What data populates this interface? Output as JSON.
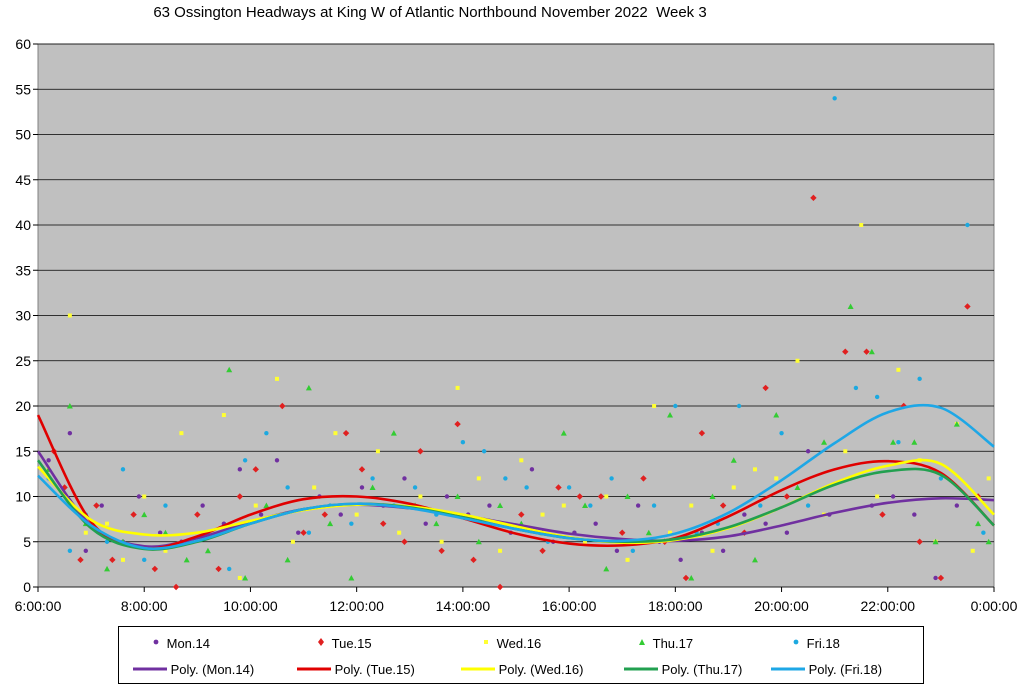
{
  "chart_data": {
    "type": "scatter",
    "title": "63 Ossington Headways at King W of Atlantic Northbound November 2022  Week 3",
    "xlabel": "",
    "ylabel": "",
    "x_range_hours": [
      6,
      24
    ],
    "ylim": [
      0,
      60
    ],
    "y_ticks": [
      0,
      5,
      10,
      15,
      20,
      25,
      30,
      35,
      40,
      45,
      50,
      55,
      60
    ],
    "x_tick_labels": [
      "6:00:00",
      "8:00:00",
      "10:00:00",
      "12:00:00",
      "14:00:00",
      "16:00:00",
      "18:00:00",
      "20:00:00",
      "22:00:00",
      "0:00:00"
    ],
    "grid": "horizontal",
    "plot_background": "#c0c0c0",
    "legend_position": "bottom",
    "series": [
      {
        "name": "Mon.14",
        "color": "#7030a0",
        "marker": "circle",
        "points": [
          [
            6.2,
            14
          ],
          [
            6.6,
            17
          ],
          [
            6.9,
            4
          ],
          [
            7.2,
            9
          ],
          [
            7.6,
            5
          ],
          [
            7.9,
            10
          ],
          [
            8.3,
            6
          ],
          [
            8.7,
            5
          ],
          [
            9.1,
            9
          ],
          [
            9.5,
            7
          ],
          [
            9.8,
            13
          ],
          [
            10.2,
            8
          ],
          [
            10.5,
            14
          ],
          [
            10.9,
            6
          ],
          [
            11.3,
            10
          ],
          [
            11.7,
            8
          ],
          [
            12.1,
            11
          ],
          [
            12.5,
            9
          ],
          [
            12.9,
            12
          ],
          [
            13.3,
            7
          ],
          [
            13.7,
            10
          ],
          [
            14.1,
            8
          ],
          [
            14.5,
            9
          ],
          [
            14.9,
            6
          ],
          [
            15.3,
            13
          ],
          [
            15.7,
            5
          ],
          [
            16.1,
            6
          ],
          [
            16.5,
            7
          ],
          [
            16.9,
            4
          ],
          [
            17.3,
            9
          ],
          [
            17.7,
            5
          ],
          [
            18.1,
            3
          ],
          [
            18.5,
            6
          ],
          [
            18.9,
            4
          ],
          [
            19.3,
            8
          ],
          [
            19.7,
            7
          ],
          [
            20.1,
            6
          ],
          [
            20.5,
            15
          ],
          [
            20.9,
            8
          ],
          [
            21.3,
            12
          ],
          [
            21.7,
            9
          ],
          [
            22.1,
            10
          ],
          [
            22.5,
            8
          ],
          [
            22.9,
            1
          ],
          [
            23.3,
            9
          ],
          [
            23.7,
            10
          ]
        ]
      },
      {
        "name": "Tue.15",
        "color": "#e02020",
        "marker": "diamond",
        "points": [
          [
            6.3,
            15
          ],
          [
            6.5,
            11
          ],
          [
            6.8,
            3
          ],
          [
            7.1,
            9
          ],
          [
            7.4,
            3
          ],
          [
            7.8,
            8
          ],
          [
            8.2,
            2
          ],
          [
            8.6,
            0
          ],
          [
            9.0,
            8
          ],
          [
            9.4,
            2
          ],
          [
            9.8,
            10
          ],
          [
            10.1,
            13
          ],
          [
            10.6,
            20
          ],
          [
            11.0,
            6
          ],
          [
            11.4,
            8
          ],
          [
            11.8,
            17
          ],
          [
            12.1,
            13
          ],
          [
            12.5,
            7
          ],
          [
            12.9,
            5
          ],
          [
            13.2,
            15
          ],
          [
            13.6,
            4
          ],
          [
            13.9,
            18
          ],
          [
            14.2,
            3
          ],
          [
            14.7,
            0
          ],
          [
            15.1,
            8
          ],
          [
            15.5,
            4
          ],
          [
            15.8,
            11
          ],
          [
            16.2,
            10
          ],
          [
            16.6,
            10
          ],
          [
            17.0,
            6
          ],
          [
            17.4,
            12
          ],
          [
            17.8,
            5
          ],
          [
            18.2,
            1
          ],
          [
            18.5,
            17
          ],
          [
            18.9,
            9
          ],
          [
            19.3,
            6
          ],
          [
            19.7,
            22
          ],
          [
            20.1,
            10
          ],
          [
            20.6,
            43
          ],
          [
            21.2,
            26
          ],
          [
            21.6,
            26
          ],
          [
            21.9,
            8
          ],
          [
            22.3,
            20
          ],
          [
            22.6,
            5
          ],
          [
            23.0,
            1
          ],
          [
            23.5,
            31
          ],
          [
            23.7,
            10
          ]
        ]
      },
      {
        "name": "Wed.16",
        "color": "#ffff33",
        "marker": "square",
        "points": [
          [
            6.2,
            13
          ],
          [
            6.6,
            30
          ],
          [
            6.9,
            6
          ],
          [
            7.3,
            7
          ],
          [
            7.6,
            3
          ],
          [
            8.0,
            10
          ],
          [
            8.4,
            4
          ],
          [
            8.7,
            17
          ],
          [
            9.1,
            6
          ],
          [
            9.5,
            19
          ],
          [
            9.8,
            1
          ],
          [
            10.1,
            9
          ],
          [
            10.5,
            23
          ],
          [
            10.8,
            5
          ],
          [
            11.2,
            11
          ],
          [
            11.6,
            17
          ],
          [
            12.0,
            8
          ],
          [
            12.4,
            15
          ],
          [
            12.8,
            6
          ],
          [
            13.2,
            10
          ],
          [
            13.6,
            5
          ],
          [
            13.9,
            22
          ],
          [
            14.3,
            12
          ],
          [
            14.7,
            4
          ],
          [
            15.1,
            14
          ],
          [
            15.5,
            8
          ],
          [
            15.9,
            9
          ],
          [
            16.3,
            5
          ],
          [
            16.7,
            10
          ],
          [
            17.1,
            3
          ],
          [
            17.6,
            20
          ],
          [
            17.9,
            6
          ],
          [
            18.3,
            9
          ],
          [
            18.7,
            4
          ],
          [
            19.1,
            11
          ],
          [
            19.5,
            13
          ],
          [
            19.9,
            12
          ],
          [
            20.3,
            25
          ],
          [
            20.8,
            8
          ],
          [
            21.2,
            15
          ],
          [
            21.5,
            40
          ],
          [
            21.8,
            10
          ],
          [
            22.2,
            24
          ],
          [
            22.6,
            14
          ],
          [
            22.9,
            5
          ],
          [
            23.3,
            18
          ],
          [
            23.6,
            4
          ],
          [
            23.9,
            12
          ]
        ]
      },
      {
        "name": "Thu.17",
        "color": "#33cc33",
        "marker": "triangle",
        "points": [
          [
            6.2,
            13
          ],
          [
            6.6,
            20
          ],
          [
            6.9,
            7
          ],
          [
            7.3,
            2
          ],
          [
            7.6,
            5
          ],
          [
            8.0,
            8
          ],
          [
            8.4,
            6
          ],
          [
            8.8,
            3
          ],
          [
            9.2,
            4
          ],
          [
            9.6,
            24
          ],
          [
            9.9,
            1
          ],
          [
            10.3,
            9
          ],
          [
            10.7,
            3
          ],
          [
            11.1,
            22
          ],
          [
            11.5,
            7
          ],
          [
            11.9,
            1
          ],
          [
            12.3,
            11
          ],
          [
            12.7,
            17
          ],
          [
            13.1,
            9
          ],
          [
            13.5,
            7
          ],
          [
            13.9,
            10
          ],
          [
            14.3,
            5
          ],
          [
            14.7,
            9
          ],
          [
            15.1,
            7
          ],
          [
            15.5,
            6
          ],
          [
            15.9,
            17
          ],
          [
            16.3,
            9
          ],
          [
            16.7,
            2
          ],
          [
            17.1,
            10
          ],
          [
            17.5,
            6
          ],
          [
            17.9,
            19
          ],
          [
            18.3,
            1
          ],
          [
            18.7,
            10
          ],
          [
            19.1,
            14
          ],
          [
            19.5,
            3
          ],
          [
            19.9,
            19
          ],
          [
            20.3,
            11
          ],
          [
            20.8,
            16
          ],
          [
            21.3,
            31
          ],
          [
            21.7,
            26
          ],
          [
            22.1,
            16
          ],
          [
            22.5,
            16
          ],
          [
            22.9,
            5
          ],
          [
            23.3,
            18
          ],
          [
            23.7,
            7
          ],
          [
            23.9,
            5
          ]
        ]
      },
      {
        "name": "Fri.18",
        "color": "#1ca9e0",
        "marker": "circle",
        "points": [
          [
            6.2,
            12
          ],
          [
            6.6,
            4
          ],
          [
            6.9,
            8
          ],
          [
            7.3,
            5
          ],
          [
            7.6,
            13
          ],
          [
            8.0,
            3
          ],
          [
            8.4,
            9
          ],
          [
            8.8,
            5
          ],
          [
            9.2,
            6
          ],
          [
            9.6,
            2
          ],
          [
            9.9,
            14
          ],
          [
            10.3,
            17
          ],
          [
            10.7,
            11
          ],
          [
            11.1,
            6
          ],
          [
            11.5,
            9
          ],
          [
            11.9,
            7
          ],
          [
            12.3,
            12
          ],
          [
            12.7,
            9
          ],
          [
            13.1,
            11
          ],
          [
            13.5,
            8
          ],
          [
            14.0,
            16
          ],
          [
            14.4,
            15
          ],
          [
            14.8,
            12
          ],
          [
            15.2,
            11
          ],
          [
            15.6,
            5
          ],
          [
            16.0,
            11
          ],
          [
            16.4,
            9
          ],
          [
            16.8,
            12
          ],
          [
            17.2,
            4
          ],
          [
            17.6,
            9
          ],
          [
            18.0,
            20
          ],
          [
            18.4,
            6
          ],
          [
            18.8,
            7
          ],
          [
            19.2,
            20
          ],
          [
            19.6,
            9
          ],
          [
            20.0,
            17
          ],
          [
            20.5,
            9
          ],
          [
            21.0,
            54
          ],
          [
            21.4,
            22
          ],
          [
            21.8,
            21
          ],
          [
            22.2,
            16
          ],
          [
            22.6,
            23
          ],
          [
            23.0,
            12
          ],
          [
            23.5,
            40
          ],
          [
            23.8,
            6
          ]
        ]
      }
    ],
    "trendlines": [
      {
        "name": "Poly. (Mon.14)",
        "color": "#7030a0",
        "hours": [
          6,
          7,
          8,
          9,
          10,
          11,
          12,
          13,
          14,
          15,
          16,
          17,
          18,
          19,
          20,
          21,
          22,
          23,
          24
        ],
        "values": [
          15,
          6.8,
          4.5,
          5.4,
          7.2,
          8.6,
          9.1,
          8.7,
          7.9,
          6.9,
          5.9,
          5.3,
          5.1,
          5.6,
          6.8,
          8.2,
          9.3,
          9.8,
          9.6
        ]
      },
      {
        "name": "Poly. (Tue.15)",
        "color": "#e00000",
        "hours": [
          6,
          7,
          8,
          9,
          10,
          11,
          12,
          13,
          14,
          15,
          16,
          17,
          18,
          19,
          20,
          21,
          22,
          23,
          24
        ],
        "values": [
          19,
          7.2,
          4.3,
          5.6,
          8.0,
          9.7,
          10.0,
          9.2,
          7.6,
          5.9,
          4.8,
          4.6,
          5.4,
          7.8,
          10.7,
          13.0,
          13.9,
          12.6,
          6.8
        ]
      },
      {
        "name": "Poly. (Wed.16)",
        "color": "#ffff00",
        "hours": [
          6,
          7,
          8,
          9,
          10,
          11,
          12,
          13,
          14,
          15,
          16,
          17,
          18,
          19,
          20,
          21,
          22,
          23,
          24
        ],
        "values": [
          13.3,
          7.4,
          5.8,
          6.0,
          7.3,
          8.5,
          9.1,
          8.9,
          8.0,
          6.7,
          5.5,
          4.9,
          5.2,
          6.5,
          8.8,
          11.5,
          13.4,
          13.6,
          8.0
        ]
      },
      {
        "name": "Poly. (Thu.17)",
        "color": "#22a050",
        "hours": [
          6,
          7,
          8,
          9,
          10,
          11,
          12,
          13,
          14,
          15,
          16,
          17,
          18,
          19,
          20,
          21,
          22,
          23,
          24
        ],
        "values": [
          14,
          6.5,
          4.2,
          5.0,
          7.0,
          8.6,
          9.2,
          8.8,
          7.7,
          6.4,
          5.4,
          5.0,
          5.3,
          6.6,
          8.8,
          11.3,
          12.8,
          12.4,
          6.8
        ]
      },
      {
        "name": "Poly. (Fri.18)",
        "color": "#1ea7e6",
        "hours": [
          6,
          7,
          8,
          9,
          10,
          11,
          12,
          13,
          14,
          15,
          16,
          17,
          18,
          19,
          20,
          21,
          22,
          23,
          24
        ],
        "values": [
          12.3,
          6.8,
          4.3,
          5.1,
          7.0,
          8.6,
          9.2,
          8.7,
          7.6,
          6.4,
          5.4,
          5.1,
          5.9,
          8.2,
          11.8,
          15.9,
          19.3,
          19.8,
          15.5
        ]
      }
    ]
  }
}
